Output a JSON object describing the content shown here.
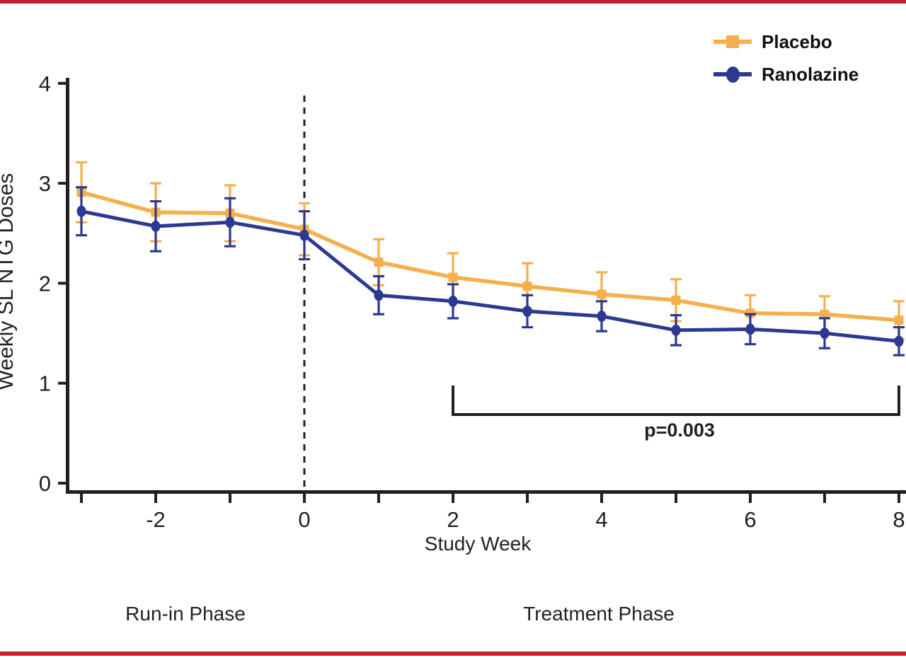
{
  "figure": {
    "background_color": "#FFFFFF",
    "border_rule_color": "#C9202C"
  },
  "chart_data": {
    "type": "line",
    "title": "",
    "xlabel": "Study Week",
    "ylabel": "Weekly SL NTG Doses",
    "ylim": [
      0,
      4
    ],
    "yticks": [
      0,
      1,
      2,
      3,
      4
    ],
    "x": [
      -3,
      -2,
      -1,
      0,
      1,
      2,
      3,
      4,
      5,
      6,
      7,
      8
    ],
    "xtick_labels": [
      {
        "x": -2,
        "label": "-2"
      },
      {
        "x": 0,
        "label": "0"
      },
      {
        "x": 2,
        "label": "2"
      },
      {
        "x": 4,
        "label": "4"
      },
      {
        "x": 6,
        "label": "6"
      },
      {
        "x": 8,
        "label": "8"
      }
    ],
    "grid": false,
    "legend_position": "top-right",
    "axis_color": "#231F20",
    "vline": {
      "x": 0,
      "style": "dashed",
      "color": "#231F20"
    },
    "series": [
      {
        "name": "Placebo",
        "color": "#F5AF4D",
        "marker": "square",
        "values": [
          2.91,
          2.71,
          2.7,
          2.54,
          2.21,
          2.06,
          1.97,
          1.89,
          1.83,
          1.7,
          1.69,
          1.63
        ],
        "errors": [
          0.3,
          0.29,
          0.28,
          0.26,
          0.23,
          0.24,
          0.23,
          0.22,
          0.21,
          0.18,
          0.18,
          0.19
        ]
      },
      {
        "name": "Ranolazine",
        "color": "#2B3990",
        "marker": "circle",
        "values": [
          2.72,
          2.57,
          2.61,
          2.48,
          1.88,
          1.82,
          1.72,
          1.67,
          1.53,
          1.54,
          1.5,
          1.42
        ],
        "errors": [
          0.24,
          0.25,
          0.24,
          0.24,
          0.19,
          0.17,
          0.16,
          0.15,
          0.15,
          0.15,
          0.15,
          0.14
        ]
      }
    ],
    "significance_bracket": {
      "x_start": 2,
      "x_end": 8,
      "label": "p=0.003"
    },
    "phase_labels": [
      {
        "label": "Run-in Phase"
      },
      {
        "label": "Treatment Phase"
      }
    ]
  }
}
